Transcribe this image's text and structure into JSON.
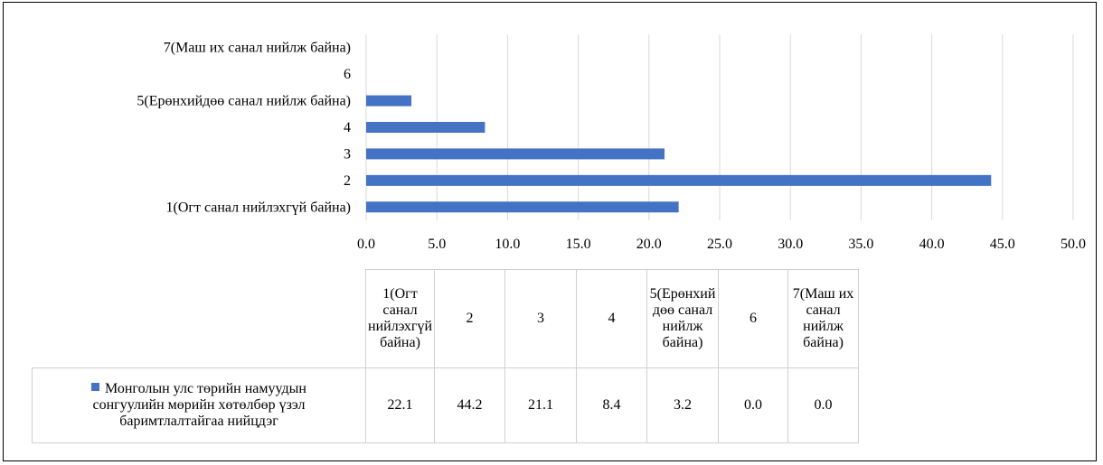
{
  "chart_data": {
    "type": "bar",
    "orientation": "horizontal",
    "categories": [
      "1(Огт санал нийлэхгүй байна)",
      "2",
      "3",
      "4",
      "5(Ерөнхийдөө санал нийлж байна)",
      "6",
      "7(Маш их санал нийлж байна)"
    ],
    "series": [
      {
        "name": "Монголын улс төрийн намуудын сонгуулийн мөрийн хөтөлбөр үзэл баримтлалтайгаа нийцдэг",
        "values": [
          22.1,
          44.2,
          21.1,
          8.4,
          3.2,
          0.0,
          0.0
        ],
        "value_labels": [
          "22.1",
          "44.2",
          "21.1",
          "8.4",
          "3.2",
          "0.0",
          "0.0"
        ]
      }
    ],
    "xlim": [
      0,
      50
    ],
    "xticks": [
      "0.0",
      "5.0",
      "10.0",
      "15.0",
      "20.0",
      "25.0",
      "30.0",
      "35.0",
      "40.0",
      "45.0",
      "50.0"
    ],
    "grid": true,
    "data_table": true,
    "table_headers": [
      [
        "1(Огт",
        "санал",
        "нийлэхгүй",
        "байна)"
      ],
      [
        "2"
      ],
      [
        "3"
      ],
      [
        "4"
      ],
      [
        "5(Ерөнхий",
        "дөө санал",
        "нийлж",
        "байна)"
      ],
      [
        "6"
      ],
      [
        "7(Маш их",
        "санал",
        "нийлж",
        "байна)"
      ]
    ],
    "series_label_lines": [
      "Монголын улс төрийн намуудын",
      "сонгуулийн мөрийн хөтөлбөр үзэл",
      "баримтлалтайгаа нийцдэг"
    ],
    "colors": {
      "bar": "#4472c4",
      "grid": "#d9d9d9",
      "table_border": "#d0d0d0"
    }
  }
}
